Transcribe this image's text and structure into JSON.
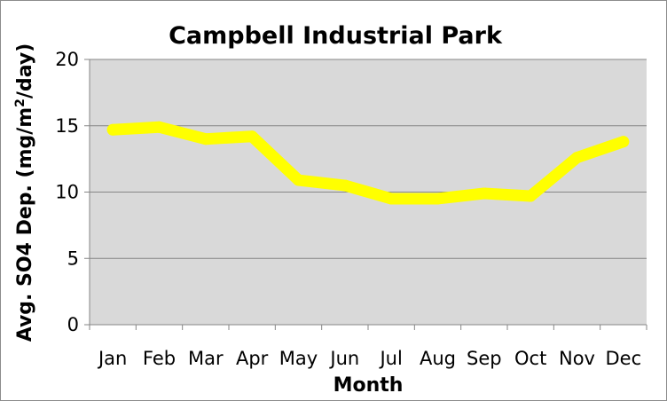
{
  "chart_data": {
    "type": "line",
    "title": "Campbell Industrial Park",
    "xlabel": "Month",
    "ylabel_parts": [
      "Avg. SO4 Dep. (mg/m",
      "2",
      "/day)"
    ],
    "categories": [
      "Jan",
      "Feb",
      "Mar",
      "Apr",
      "May",
      "Jun",
      "Jul",
      "Aug",
      "Sep",
      "Oct",
      "Nov",
      "Dec"
    ],
    "series": [
      {
        "values": [
          14.7,
          14.9,
          14.0,
          14.2,
          10.9,
          10.5,
          9.5,
          9.5,
          9.9,
          9.7,
          12.6,
          13.8
        ]
      }
    ],
    "ylim": [
      0,
      20
    ],
    "yticks": [
      "0",
      "5",
      "10",
      "15",
      "20"
    ],
    "grid": true,
    "legend": "none",
    "colors": {
      "line": "#ffff00",
      "plot_bg": "#d9d9d9",
      "grid": "#868686"
    }
  }
}
